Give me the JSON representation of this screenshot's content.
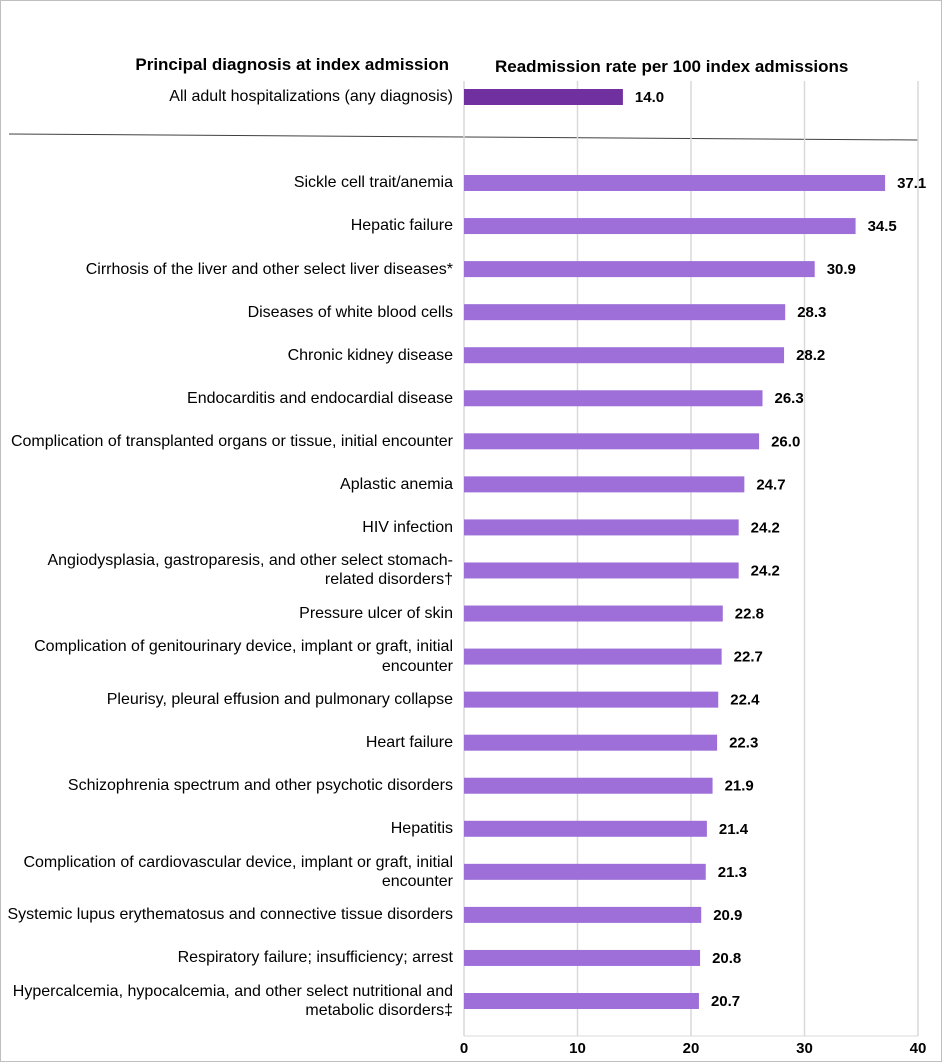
{
  "chart_data": {
    "type": "bar",
    "orientation": "horizontal",
    "category_header": "Principal diagnosis at index admission",
    "value_header": "Readmission rate per 100 index admissions",
    "reference": {
      "category": "All adult hospitalizations (any diagnosis)",
      "value": 14.0,
      "value_label": "14.0",
      "color": "#7030a0"
    },
    "categories": [
      "Sickle cell trait/anemia",
      "Hepatic failure",
      "Cirrhosis of the liver and other select liver diseases*",
      "Diseases of white blood cells",
      "Chronic kidney disease",
      "Endocarditis and endocardial disease",
      "Complication of transplanted organs or tissue, initial encounter",
      "Aplastic anemia",
      "HIV infection",
      "Angiodysplasia, gastroparesis, and other select stomach-related disorders†",
      "Pressure ulcer of skin",
      "Complication of genitourinary device, implant or graft, initial encounter",
      "Pleurisy, pleural effusion and pulmonary collapse",
      "Heart failure",
      "Schizophrenia spectrum and other psychotic disorders",
      "Hepatitis",
      "Complication of cardiovascular device, implant or graft, initial encounter",
      "Systemic lupus erythematosus and connective tissue disorders",
      "Respiratory failure; insufficiency; arrest",
      "Hypercalcemia, hypocalcemia, and other select nutritional and metabolic disorders‡"
    ],
    "values": [
      37.1,
      34.5,
      30.9,
      28.3,
      28.2,
      26.3,
      26.0,
      24.7,
      24.2,
      24.2,
      22.8,
      22.7,
      22.4,
      22.3,
      21.9,
      21.4,
      21.3,
      20.9,
      20.8,
      20.7
    ],
    "value_labels": [
      "37.1",
      "34.5",
      "30.9",
      "28.3",
      "28.2",
      "26.3",
      "26.0",
      "24.7",
      "24.2",
      "24.2",
      "22.8",
      "22.7",
      "22.4",
      "22.3",
      "21.9",
      "21.4",
      "21.3",
      "20.9",
      "20.8",
      "20.7"
    ],
    "color": "#9e6fd8",
    "xlim": [
      0,
      40
    ],
    "xticks": [
      0,
      10,
      20,
      30,
      40
    ],
    "grid": true
  }
}
